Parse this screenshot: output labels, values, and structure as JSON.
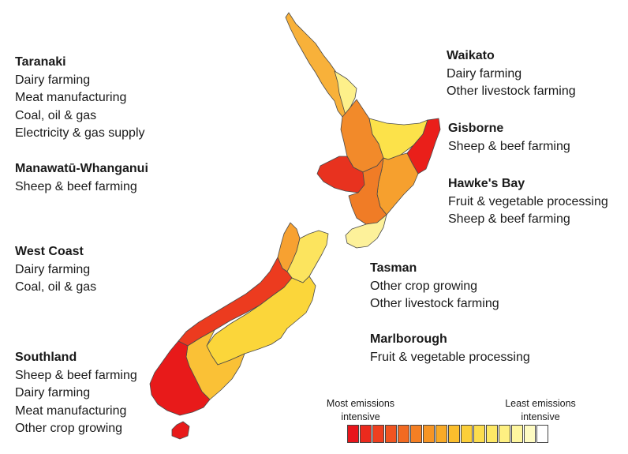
{
  "regions": {
    "taranaki": {
      "name": "Taranaki",
      "industries": [
        "Dairy farming",
        "Meat manufacturing",
        "Coal, oil & gas",
        "Electricity & gas supply"
      ]
    },
    "manawatu": {
      "name": "Manawatū-Whanganui",
      "industries": [
        "Sheep & beef farming"
      ]
    },
    "west_coast": {
      "name": "West Coast",
      "industries": [
        "Dairy farming",
        "Coal, oil & gas"
      ]
    },
    "southland": {
      "name": "Southland",
      "industries": [
        "Sheep & beef farming",
        "Dairy farming",
        "Meat manufacturing",
        "Other crop growing"
      ]
    },
    "waikato": {
      "name": "Waikato",
      "industries": [
        "Dairy farming",
        "Other livestock farming"
      ]
    },
    "gisborne": {
      "name": "Gisborne",
      "industries": [
        "Sheep & beef farming"
      ]
    },
    "hawkes_bay": {
      "name": "Hawke's Bay",
      "industries": [
        "Fruit & vegetable processing",
        "Sheep & beef farming"
      ]
    },
    "tasman": {
      "name": "Tasman",
      "industries": [
        "Other crop growing",
        "Other livestock farming"
      ]
    },
    "marlborough": {
      "name": "Marlborough",
      "industries": [
        "Fruit & vegetable processing"
      ]
    }
  },
  "legend": {
    "most_label": "Most emissions intensive",
    "least_label": "Least emissions intensive",
    "colors": [
      "#e8151b",
      "#eb2a1d",
      "#ee3f1f",
      "#f05420",
      "#f26a22",
      "#f47f24",
      "#f69525",
      "#f8aa27",
      "#fabe2d",
      "#fbcf3a",
      "#fcdd4e",
      "#fde866",
      "#fef082",
      "#fef69f",
      "#fefbc2",
      "#ffffff"
    ]
  },
  "map_colors": {
    "northland": "#f8b13a",
    "auckland_strip": "#fdf08a",
    "bay_of_plenty": "#fce24a",
    "waikato": "#f28a2a",
    "taranaki": "#e8321f",
    "manawatu": "#f07c26",
    "gisborne": "#ea1f1a",
    "hawkes_bay": "#f6a02e",
    "wellington": "#fdf19a",
    "tasman": "#f7a131",
    "nelson_marlborough": "#fce45e",
    "west_coast": "#ec3b1f",
    "canterbury": "#fbd63a",
    "otago": "#fac136",
    "southland": "#e81a1a",
    "stewart": "#e81a1a"
  }
}
